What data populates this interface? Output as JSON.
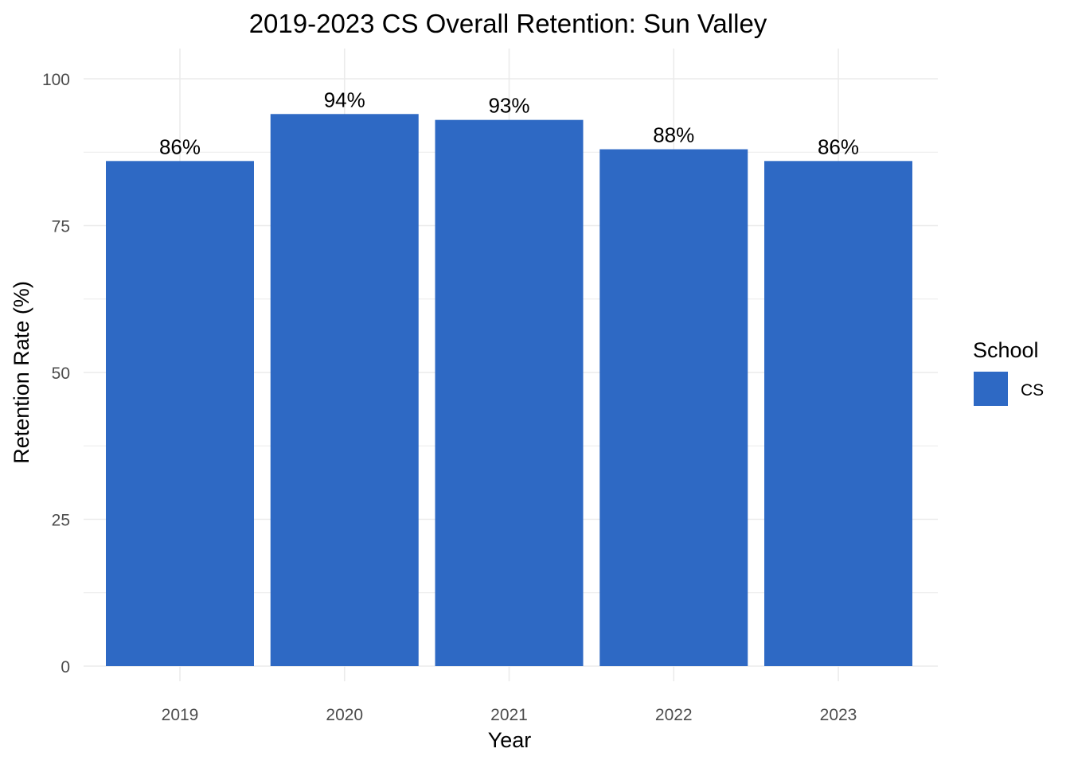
{
  "chart_data": {
    "type": "bar",
    "title": "2019-2023 CS Overall Retention: Sun Valley",
    "xlabel": "Year",
    "ylabel": "Retention Rate (%)",
    "categories": [
      "2019",
      "2020",
      "2021",
      "2022",
      "2023"
    ],
    "series": [
      {
        "name": "CS",
        "values": [
          86,
          94,
          93,
          88,
          86
        ],
        "data_labels": [
          "86%",
          "94%",
          "93%",
          "88%",
          "86%"
        ],
        "color": "#2E69C4"
      }
    ],
    "ylim": [
      0,
      100
    ],
    "yticks": [
      0,
      25,
      50,
      75,
      100
    ],
    "ytick_labels": [
      "0",
      "25",
      "50",
      "75",
      "100"
    ],
    "grid": true,
    "legend": {
      "title": "School",
      "position": "right",
      "items": [
        "CS"
      ]
    },
    "colors": {
      "bar": "#2E69C4",
      "grid": "#EBEBEB",
      "tick_text": "#4D4D4D",
      "text": "#000000"
    }
  }
}
